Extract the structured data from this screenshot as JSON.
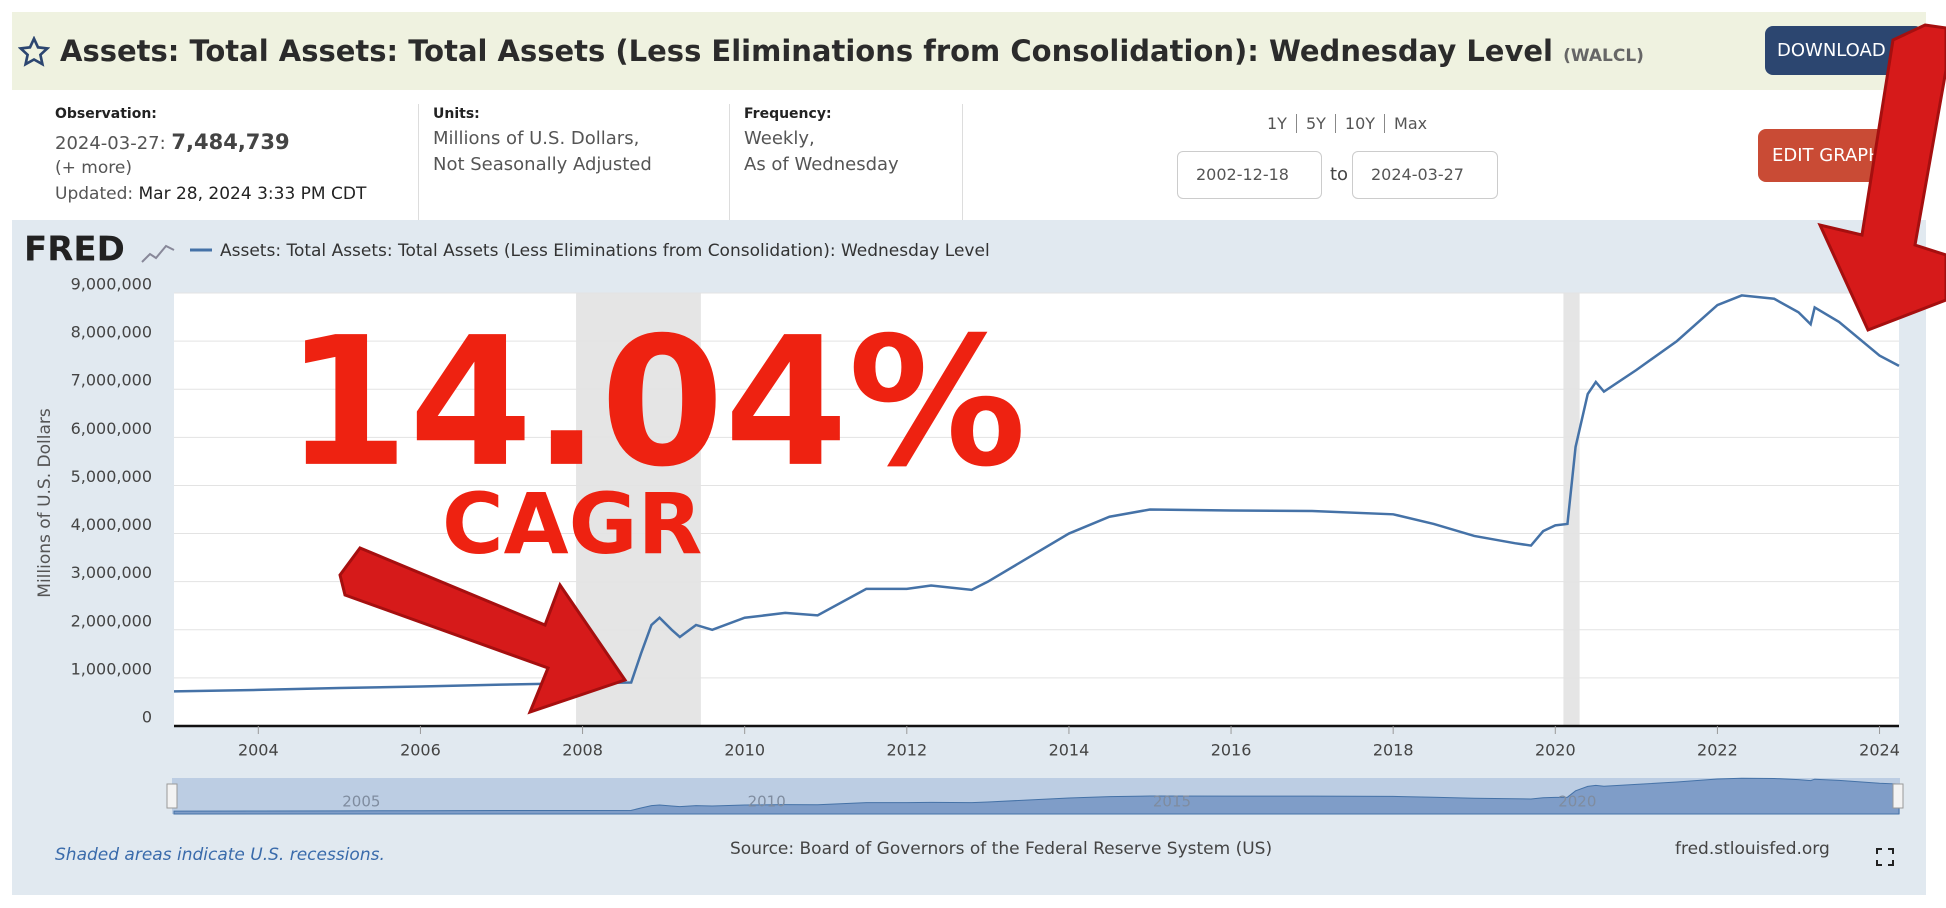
{
  "header": {
    "title": "Assets: Total Assets: Total Assets (Less Eliminations from Consolidation): Wednesday Level",
    "ticker": "(WALCL)",
    "download": "DOWNLOAD"
  },
  "info": {
    "observation_label": "Observation:",
    "observation_date": "2024-03-27:",
    "observation_value": "7,484,739",
    "more": "(+ more)",
    "updated_label": "Updated:",
    "updated": "Mar 28, 2024 3:33 PM CDT",
    "units_label": "Units:",
    "units": [
      "Millions of U.S. Dollars,",
      "Not Seasonally Adjusted"
    ],
    "frequency_label": "Frequency:",
    "frequency": [
      "Weekly,",
      "As of Wednesday"
    ]
  },
  "range": {
    "presets": [
      "1Y",
      "5Y",
      "10Y",
      "Max"
    ],
    "start": "2002-12-18",
    "to": "to",
    "end": "2024-03-27",
    "edit": "EDIT GRAPH"
  },
  "chart_data": {
    "type": "line",
    "logo": "FRED",
    "x": [
      2002.96,
      2004,
      2005,
      2006,
      2007,
      2008,
      2008.6,
      2008.72,
      2008.85,
      2008.95,
      2009.1,
      2009.2,
      2009.4,
      2009.6,
      2010,
      2010.5,
      2010.9,
      2011.5,
      2012,
      2012.3,
      2012.8,
      2013,
      2013.5,
      2014,
      2014.5,
      2015,
      2016,
      2017,
      2018,
      2018.5,
      2019,
      2019.5,
      2019.7,
      2019.85,
      2020.0,
      2020.15,
      2020.25,
      2020.4,
      2020.5,
      2020.6,
      2021,
      2021.5,
      2022,
      2022.3,
      2022.7,
      2023,
      2023.15,
      2023.2,
      2023.5,
      2024,
      2024.24
    ],
    "series": [
      {
        "name": "Assets: Total Assets: Total Assets (Less Eliminations from Consolidation): Wednesday Level",
        "color": "#4572a7",
        "values": [
          720000,
          750000,
          790000,
          820000,
          860000,
          890000,
          905000,
          1500000,
          2100000,
          2250000,
          2000000,
          1850000,
          2100000,
          2000000,
          2250000,
          2350000,
          2300000,
          2850000,
          2850000,
          2920000,
          2830000,
          3000000,
          3500000,
          4000000,
          4350000,
          4500000,
          4480000,
          4470000,
          4400000,
          4200000,
          3950000,
          3800000,
          3750000,
          4050000,
          4170000,
          4200000,
          5800000,
          6900000,
          7150000,
          6950000,
          7400000,
          8000000,
          8750000,
          8950000,
          8880000,
          8600000,
          8350000,
          8700000,
          8400000,
          7700000,
          7484739
        ]
      }
    ],
    "xlim": [
      2002.96,
      2024.24
    ],
    "xticks": [
      2004,
      2006,
      2008,
      2010,
      2012,
      2014,
      2016,
      2018,
      2020,
      2022,
      2024
    ],
    "ylim": [
      0,
      9000000
    ],
    "yticks": [
      0,
      {
        "value": 1000000,
        "label": "1,000,000"
      },
      {
        "value": 2000000,
        "label": "2,000,000"
      },
      {
        "value": 3000000,
        "label": "3,000,000"
      },
      {
        "value": 4000000,
        "label": "4,000,000"
      },
      {
        "value": 5000000,
        "label": "5,000,000"
      },
      {
        "value": 6000000,
        "label": "6,000,000"
      },
      {
        "value": 7000000,
        "label": "7,000,000"
      },
      {
        "value": 8000000,
        "label": "8,000,000"
      },
      {
        "value": 9000000,
        "label": "9,000,000"
      }
    ],
    "ylabel": "Millions of U.S. Dollars",
    "grid": true,
    "annotations": [
      "14.04%",
      "CAGR"
    ],
    "recessions": [
      [
        2007.92,
        2009.46
      ],
      [
        2020.1,
        2020.3
      ]
    ],
    "navigator_ticks": [
      2005,
      2010,
      2015,
      2020
    ]
  },
  "footer": {
    "note": "Shaded areas indicate U.S. recessions.",
    "source": "Source: Board of Governors of the Federal Reserve System (US)",
    "site": "fred.stlouisfed.org"
  }
}
